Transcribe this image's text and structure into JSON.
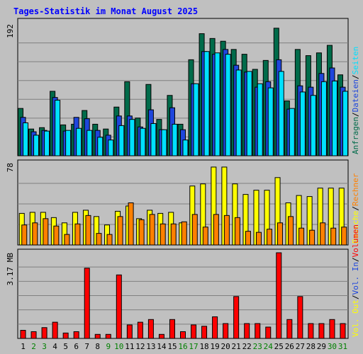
{
  "title": "Tages-Statistik im Monat August 2025",
  "chart_data": [
    {
      "type": "bar",
      "title": "Tages-Statistik im Monat August 2025",
      "categories": [
        "1",
        "2",
        "3",
        "4",
        "5",
        "6",
        "7",
        "8",
        "9",
        "10",
        "11",
        "12",
        "13",
        "14",
        "15",
        "16",
        "17",
        "18",
        "19",
        "20",
        "21",
        "22",
        "23",
        "24",
        "25",
        "26",
        "27",
        "28",
        "29",
        "30",
        "31"
      ],
      "weekend_days": [
        2,
        3,
        9,
        10,
        16,
        17,
        23,
        24,
        30,
        31
      ],
      "ylim": [
        0,
        192
      ],
      "ylabel_max": "192",
      "series": [
        {
          "name": "Anfragen",
          "color": "#006b4a",
          "values": [
            69,
            39,
            41,
            94,
            45,
            46,
            66,
            46,
            39,
            71,
            108,
            55,
            104,
            53,
            88,
            46,
            140,
            178,
            171,
            167,
            155,
            148,
            126,
            139,
            186,
            80,
            155,
            146,
            150,
            161,
            118
          ]
        },
        {
          "name": "Dateien",
          "color": "#1e46dc",
          "values": [
            56,
            35,
            37,
            85,
            36,
            56,
            54,
            37,
            30,
            58,
            58,
            42,
            67,
            38,
            70,
            38,
            105,
            152,
            148,
            155,
            132,
            122,
            100,
            108,
            140,
            68,
            102,
            100,
            120,
            128,
            100
          ]
        },
        {
          "name": "Seiten",
          "color": "#00e0ff",
          "values": [
            48,
            30,
            36,
            81,
            37,
            40,
            37,
            27,
            23,
            44,
            53,
            40,
            47,
            38,
            46,
            23,
            105,
            152,
            150,
            148,
            125,
            123,
            105,
            99,
            123,
            69,
            93,
            88,
            108,
            109,
            94
          ]
        }
      ],
      "series_labels": [
        "Anfragen",
        "Dateien",
        "Seiten"
      ]
    },
    {
      "type": "bar",
      "categories": [
        "1",
        "2",
        "3",
        "4",
        "5",
        "6",
        "7",
        "8",
        "9",
        "10",
        "11",
        "12",
        "13",
        "14",
        "15",
        "16",
        "17",
        "18",
        "19",
        "20",
        "21",
        "22",
        "23",
        "24",
        "25",
        "26",
        "27",
        "28",
        "29",
        "30",
        "31"
      ],
      "ylim": [
        0,
        78
      ],
      "ylabel_max": "78",
      "series": [
        {
          "name": "Besuche",
          "color": "#ffff00",
          "values": [
            30,
            31,
            31,
            26,
            21,
            31,
            33,
            27,
            19,
            32,
            37,
            25,
            33,
            30,
            31,
            21,
            56,
            58,
            74,
            74,
            58,
            48,
            52,
            52,
            64,
            40,
            47,
            46,
            54,
            54,
            54
          ]
        },
        {
          "name": "Rechner",
          "color": "#ff8000",
          "values": [
            19,
            21,
            25,
            18,
            10,
            20,
            28,
            11,
            10,
            27,
            40,
            24,
            29,
            20,
            20,
            22,
            29,
            17,
            29,
            28,
            26,
            13,
            12,
            15,
            21,
            27,
            16,
            14,
            21,
            16,
            17
          ]
        }
      ],
      "series_labels": [
        "Besuche",
        "Rechner"
      ]
    },
    {
      "type": "bar",
      "categories": [
        "1",
        "2",
        "3",
        "4",
        "5",
        "6",
        "7",
        "8",
        "9",
        "10",
        "11",
        "12",
        "13",
        "14",
        "15",
        "16",
        "17",
        "18",
        "19",
        "20",
        "21",
        "22",
        "23",
        "24",
        "25",
        "26",
        "27",
        "28",
        "29",
        "30",
        "31"
      ],
      "ylim": [
        0,
        3.17
      ],
      "ylabel_max": "3.17 MB",
      "series": [
        {
          "name": "Volumen",
          "color": "#ff0000",
          "values": [
            0.3,
            0.25,
            0.4,
            0.6,
            0.2,
            0.25,
            2.6,
            0.15,
            0.15,
            2.35,
            0.5,
            0.6,
            0.7,
            0.15,
            0.7,
            0.25,
            0.5,
            0.45,
            0.8,
            0.55,
            1.55,
            0.55,
            0.55,
            0.42,
            3.17,
            0.7,
            1.55,
            0.55,
            0.55,
            0.7,
            0.55
          ]
        }
      ],
      "series_labels": [
        "Vol. Out",
        "Vol. In",
        "Volumen"
      ]
    }
  ],
  "legend_separator": "/",
  "legend_colors": {
    "Anfragen": "#006b4a",
    "Dateien": "#1e46dc",
    "Seiten": "#00e0ff",
    "Besuche": "#ffff00",
    "Rechner": "#ff8000",
    "Vol. Out": "#ffff00",
    "Vol. In": "#1e46dc",
    "Volumen": "#ff0000",
    "separator": "#000000"
  },
  "colors": {
    "background": "#c0c0c0",
    "panel": "#c0c0c0",
    "title": "#0000ff",
    "weekday_label": "#000000",
    "weekend_label": "#008000",
    "gridline": "#808080"
  }
}
